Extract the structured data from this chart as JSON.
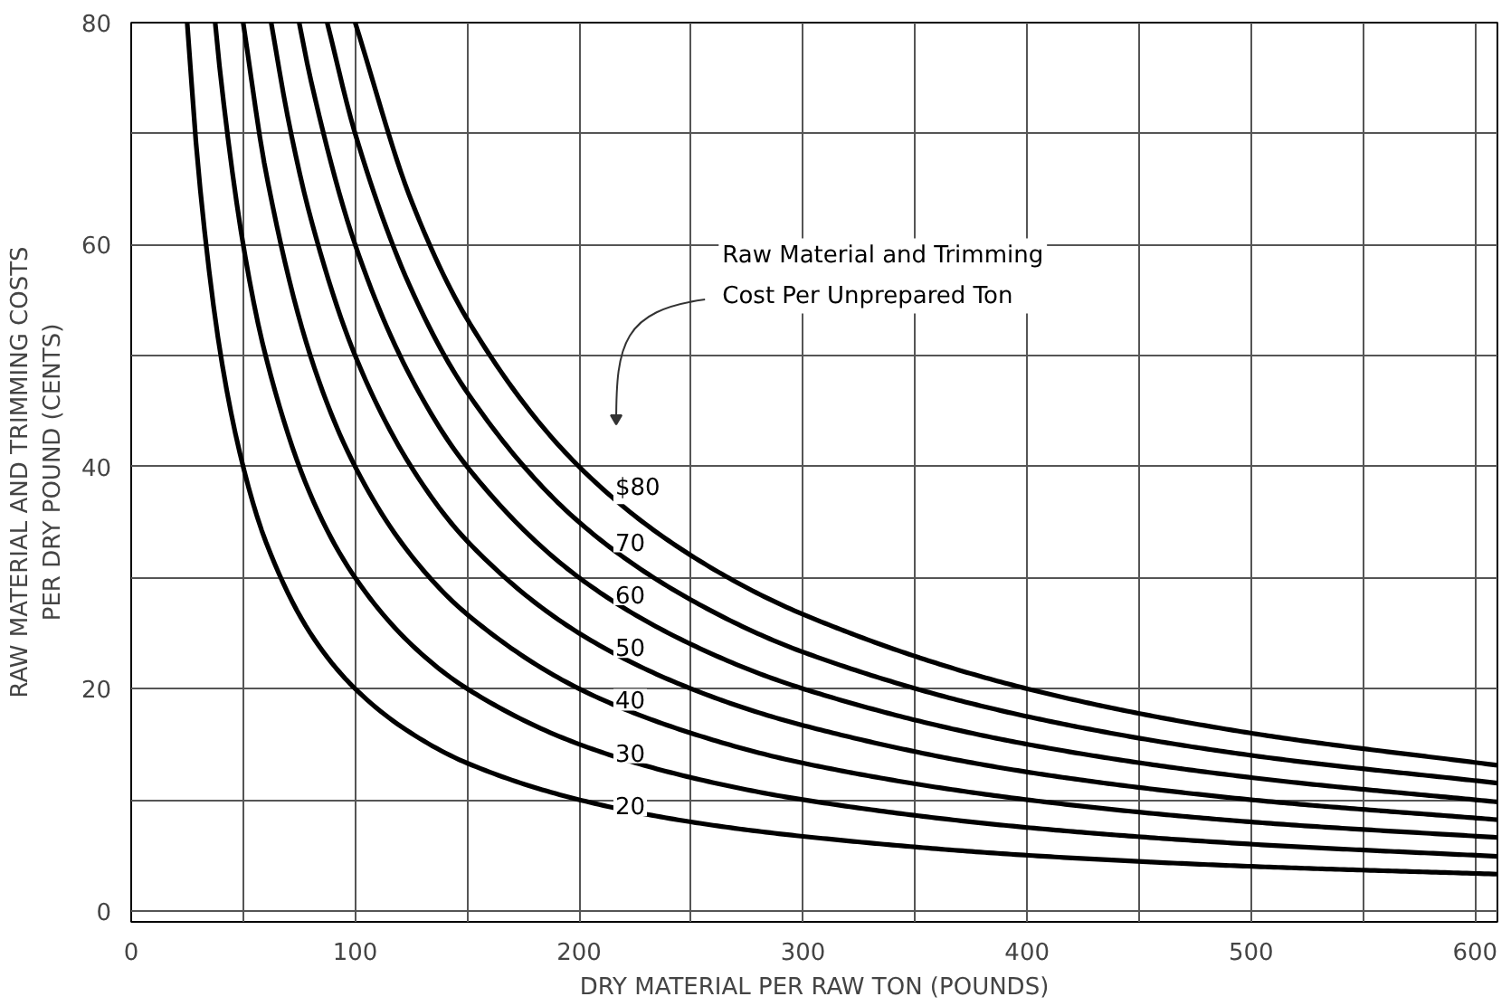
{
  "chart_data": {
    "type": "line",
    "xlabel": "DRY MATERIAL PER RAW TON (POUNDS)",
    "ylabel": "RAW MATERIAL AND TRIMMING COSTS\nPER DRY POUND (CENTS)",
    "annotations": [
      "Raw Material and Trimming\nCost Per Unprepared Ton"
    ],
    "xlim": [
      0,
      610
    ],
    "ylim": [
      -1,
      80
    ],
    "xticks": [
      0,
      {
        "value": 50,
        "label": null
      },
      100,
      {
        "value": 150,
        "label": null
      },
      200,
      {
        "value": 250,
        "label": null
      },
      300,
      {
        "value": 350,
        "label": null
      },
      400,
      {
        "value": 450,
        "label": null
      },
      500,
      {
        "value": 550,
        "label": null
      },
      600
    ],
    "yticks": [
      0,
      {
        "value": 10,
        "label": null
      },
      20,
      {
        "value": 30,
        "label": null
      },
      40,
      {
        "value": 50,
        "label": null
      },
      60,
      {
        "value": 70,
        "label": null
      },
      80
    ],
    "grid": true,
    "marker": "none",
    "line_style": "solid",
    "series": [
      {
        "name": "$80",
        "color": "#000000",
        "x": [
          100,
          125,
          150,
          200,
          250,
          300,
          400,
          500,
          610
        ],
        "values": [
          80,
          64,
          53.3,
          40,
          32,
          26.7,
          20,
          16,
          13.1
        ]
      },
      {
        "name": "70",
        "color": "#000000",
        "x": [
          87.5,
          100,
          125,
          150,
          200,
          250,
          300,
          400,
          500,
          610
        ],
        "values": [
          80,
          70,
          56,
          46.7,
          35,
          28,
          23.3,
          17.5,
          14,
          11.5
        ]
      },
      {
        "name": "60",
        "color": "#000000",
        "x": [
          75,
          80,
          100,
          125,
          150,
          200,
          250,
          300,
          400,
          500,
          610
        ],
        "values": [
          80,
          75,
          60,
          48,
          40,
          30,
          24,
          20,
          15,
          12,
          9.8
        ]
      },
      {
        "name": "50",
        "color": "#000000",
        "x": [
          62.5,
          70,
          80,
          100,
          125,
          150,
          200,
          250,
          300,
          400,
          500,
          610
        ],
        "values": [
          80,
          71.4,
          62.5,
          50,
          40,
          33.3,
          25,
          20,
          16.7,
          12.5,
          10,
          8.2
        ]
      },
      {
        "name": "40",
        "color": "#000000",
        "x": [
          50,
          60,
          80,
          100,
          125,
          150,
          200,
          250,
          300,
          400,
          500,
          610
        ],
        "values": [
          80,
          66.7,
          50,
          40,
          32,
          26.7,
          20,
          16,
          13.3,
          10,
          8,
          6.6
        ]
      },
      {
        "name": "30",
        "color": "#000000",
        "x": [
          37.5,
          40,
          50,
          60,
          80,
          100,
          125,
          150,
          200,
          250,
          300,
          400,
          500,
          610
        ],
        "values": [
          80,
          75,
          60,
          50,
          37.5,
          30,
          24,
          20,
          15,
          12,
          10,
          7.5,
          6,
          4.9
        ]
      },
      {
        "name": "20",
        "color": "#000000",
        "x": [
          25,
          30,
          40,
          50,
          60,
          80,
          100,
          125,
          150,
          200,
          250,
          300,
          400,
          500,
          610
        ],
        "values": [
          80,
          66.7,
          50,
          40,
          33.3,
          25,
          20,
          16,
          13.3,
          10,
          8,
          6.7,
          5,
          4,
          3.3
        ]
      }
    ]
  }
}
